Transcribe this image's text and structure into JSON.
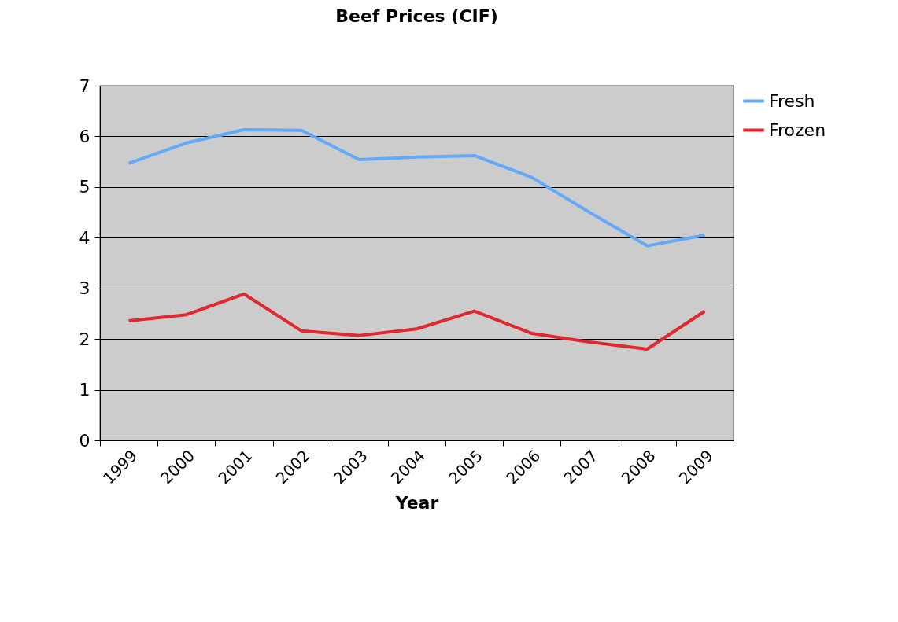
{
  "chart_data": {
    "type": "line",
    "title": "Beef Prices (CIF)",
    "xlabel": "Year",
    "categories": [
      "1999",
      "2000",
      "2001",
      "2002",
      "2003",
      "2004",
      "2005",
      "2006",
      "2007",
      "2008",
      "2009"
    ],
    "series": [
      {
        "name": "Fresh",
        "color": "#63a9f7",
        "values": [
          5.47,
          5.87,
          6.13,
          6.12,
          5.54,
          5.59,
          5.62,
          5.19,
          4.5,
          3.84,
          4.05
        ]
      },
      {
        "name": "Frozen",
        "color": "#e0282e",
        "values": [
          2.36,
          2.48,
          2.89,
          2.16,
          2.07,
          2.2,
          2.55,
          2.11,
          1.94,
          1.8,
          2.55
        ]
      }
    ],
    "ylim": [
      0,
      7
    ],
    "yticks": [
      0,
      1,
      2,
      3,
      4,
      5,
      6,
      7
    ],
    "grid": "y",
    "legend": "right",
    "marker": "none",
    "line_style": "solid"
  }
}
